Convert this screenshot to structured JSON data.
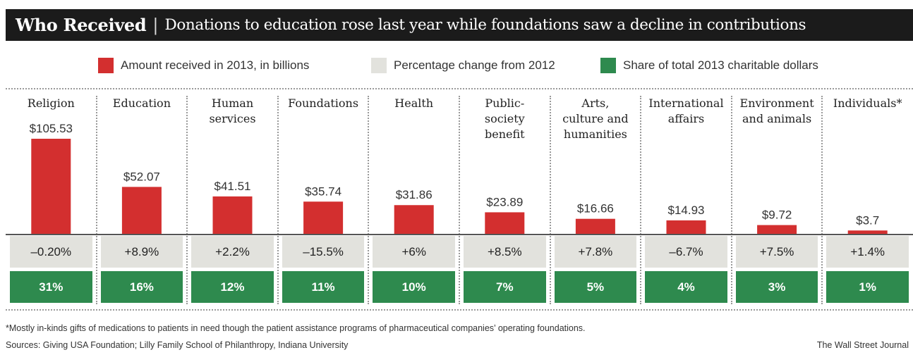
{
  "title": {
    "bold": "Who Received",
    "separator": "|",
    "subtitle": "Donations to education rose last year while foundations saw a decline in contributions"
  },
  "legend": [
    {
      "label": "Amount received in 2013, in billions",
      "color": "#d32f2f"
    },
    {
      "label": "Percentage change from 2012",
      "color": "#e2e2dd"
    },
    {
      "label": "Share of total 2013 charitable dollars",
      "color": "#2e8a4e"
    }
  ],
  "chart_data": {
    "type": "bar",
    "categories": [
      [
        "Religion"
      ],
      [
        "Education"
      ],
      [
        "Human",
        "services"
      ],
      [
        "Foundations"
      ],
      [
        "Health"
      ],
      [
        "Public-",
        "society",
        "benefit"
      ],
      [
        "Arts,",
        "culture and",
        "humanities"
      ],
      [
        "International",
        "affairs"
      ],
      [
        "Environment",
        "and animals"
      ],
      [
        "Individuals*"
      ]
    ],
    "values": [
      105.53,
      52.07,
      41.51,
      35.74,
      31.86,
      23.89,
      16.66,
      14.93,
      9.72,
      3.7
    ],
    "value_labels": [
      "$105.53",
      "$52.07",
      "$41.51",
      "$35.74",
      "$31.86",
      "$23.89",
      "$16.66",
      "$14.93",
      "$9.72",
      "$3.7"
    ],
    "pct_change": [
      "–0.20%",
      "+8.9%",
      "+2.2%",
      "–15.5%",
      "+6%",
      "+8.5%",
      "+7.8%",
      "–6.7%",
      "+7.5%",
      "+1.4%"
    ],
    "share": [
      "31%",
      "16%",
      "12%",
      "11%",
      "10%",
      "7%",
      "5%",
      "4%",
      "3%",
      "1%"
    ],
    "bar_color": "#d32f2f",
    "pct_color": "#e2e2dd",
    "share_color": "#2e8a4e",
    "ylim": [
      0,
      105.53
    ]
  },
  "footnote": "*Mostly in-kinds gifts of medications to patients in need though the patient assistance programs of pharmaceutical companies’ operating foundations.",
  "sources": "Sources: Giving USA Foundation; Lilly Family School of Philanthropy, Indiana University",
  "credit": "The Wall Street Journal"
}
